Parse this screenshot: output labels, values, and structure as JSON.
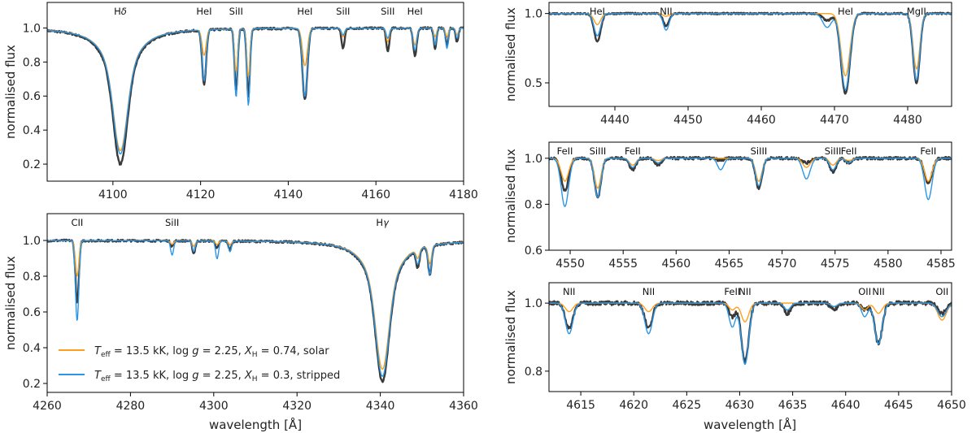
{
  "colors": {
    "observed": "#3a3a3a",
    "solar_model": "#ff9f1c",
    "stripped_model": "#2a96e8"
  },
  "legend": {
    "entries": [
      {
        "series": "solar",
        "label": "T_eff = 13.5 kK, log g = 2.25, X_H = 0.74, solar"
      },
      {
        "series": "stripped",
        "label": "T_eff = 13.5 kK, log g = 2.25, X_H = 0.3, stripped"
      }
    ]
  },
  "chart_data": [
    {
      "id": "panel-a",
      "type": "line",
      "xlabel": "",
      "ylabel": "normalised flux",
      "xlim": [
        4085,
        4180
      ],
      "ylim": [
        0.1,
        1.15
      ],
      "xticks": [
        4100,
        4120,
        4140,
        4160,
        4180
      ],
      "yticks": [
        0.2,
        0.4,
        0.6,
        0.8,
        1.0
      ],
      "lines": [
        {
          "label": "Hδ",
          "wl": 4101.7,
          "w": 2.6,
          "d": [
            0.72,
            0.8,
            0.74
          ],
          "broad": true
        },
        {
          "label": "HeI",
          "wl": 4120.8,
          "w": 0.45,
          "d": [
            0.15,
            0.32,
            0.3
          ]
        },
        {
          "label": "SiII",
          "wl": 4128.1,
          "w": 0.35,
          "d": [
            0.25,
            0.36,
            0.4
          ]
        },
        {
          "label": "",
          "wl": 4130.9,
          "w": 0.35,
          "d": [
            0.28,
            0.4,
            0.45
          ]
        },
        {
          "label": "HeI",
          "wl": 4143.8,
          "w": 0.55,
          "d": [
            0.22,
            0.42,
            0.4
          ]
        },
        {
          "label": "SiII",
          "wl": 4152.5,
          "w": 0.35,
          "d": [
            0.05,
            0.12,
            0.04
          ]
        },
        {
          "label": "SiII",
          "wl": 4162.7,
          "w": 0.35,
          "d": [
            0.08,
            0.14,
            0.06
          ]
        },
        {
          "label": "HeI",
          "wl": 4168.9,
          "w": 0.4,
          "d": [
            0.1,
            0.16,
            0.13
          ]
        },
        {
          "label": "",
          "wl": 4173.5,
          "w": 0.3,
          "d": [
            0.05,
            0.12,
            0.1
          ]
        },
        {
          "label": "",
          "wl": 4176.2,
          "w": 0.3,
          "d": [
            0.05,
            0.1,
            0.12
          ]
        },
        {
          "label": "",
          "wl": 4178.5,
          "w": 0.3,
          "d": [
            0.04,
            0.08,
            0.06
          ]
        }
      ]
    },
    {
      "id": "panel-b",
      "type": "line",
      "xlabel": "wavelength [Å]",
      "ylabel": "normalised flux",
      "xlim": [
        4260,
        4360
      ],
      "ylim": [
        0.15,
        1.15
      ],
      "xticks": [
        4260,
        4280,
        4300,
        4320,
        4340,
        4360
      ],
      "yticks": [
        0.2,
        0.4,
        0.6,
        0.8,
        1.0
      ],
      "lines": [
        {
          "label": "CII",
          "wl": 4267.2,
          "w": 0.4,
          "d": [
            0.2,
            0.35,
            0.45
          ]
        },
        {
          "label": "SiII",
          "wl": 4290.0,
          "w": 0.35,
          "d": [
            0.02,
            0.03,
            0.08
          ]
        },
        {
          "label": "",
          "wl": 4295.2,
          "w": 0.35,
          "d": [
            0.03,
            0.07,
            0.06
          ]
        },
        {
          "label": "",
          "wl": 4300.8,
          "w": 0.35,
          "d": [
            0.02,
            0.04,
            0.1
          ]
        },
        {
          "label": "",
          "wl": 4303.9,
          "w": 0.35,
          "d": [
            0.02,
            0.05,
            0.06
          ]
        },
        {
          "label": "Hγ",
          "wl": 4340.5,
          "w": 2.6,
          "d": [
            0.72,
            0.79,
            0.76
          ],
          "broad": true
        },
        {
          "label": "",
          "wl": 4349.0,
          "w": 0.4,
          "d": [
            0.05,
            0.1,
            0.08
          ]
        },
        {
          "label": "",
          "wl": 4351.9,
          "w": 0.4,
          "d": [
            0.1,
            0.16,
            0.16
          ]
        }
      ]
    },
    {
      "id": "panel-c",
      "type": "line",
      "xlabel": "",
      "ylabel": "normalised flux",
      "xlim": [
        4431,
        4486
      ],
      "ylim": [
        0.33,
        1.08
      ],
      "xticks": [
        4440,
        4450,
        4460,
        4470,
        4480
      ],
      "yticks": [
        0.5,
        1.0
      ],
      "lines": [
        {
          "label": "HeI",
          "wl": 4437.6,
          "w": 0.45,
          "d": [
            0.08,
            0.2,
            0.16
          ]
        },
        {
          "label": "NII",
          "wl": 4447.0,
          "w": 0.4,
          "d": [
            0.02,
            0.09,
            0.12
          ]
        },
        {
          "label": "",
          "wl": 4469.0,
          "w": 0.6,
          "d": [
            0.0,
            0.05,
            0.1
          ]
        },
        {
          "label": "HeI",
          "wl": 4471.5,
          "w": 0.6,
          "d": [
            0.45,
            0.58,
            0.55
          ]
        },
        {
          "label": "MgII",
          "wl": 4481.2,
          "w": 0.45,
          "d": [
            0.4,
            0.5,
            0.48
          ]
        }
      ]
    },
    {
      "id": "panel-d",
      "type": "line",
      "xlabel": "",
      "ylabel": "normalised flux",
      "xlim": [
        4548,
        4586
      ],
      "ylim": [
        0.6,
        1.07
      ],
      "xticks": [
        4550,
        4555,
        4560,
        4565,
        4570,
        4575,
        4580,
        4585
      ],
      "yticks": [
        0.6,
        0.8,
        1.0
      ],
      "lines": [
        {
          "label": "FeII",
          "wl": 4549.5,
          "w": 0.35,
          "d": [
            0.1,
            0.14,
            0.21
          ]
        },
        {
          "label": "SiIII",
          "wl": 4552.6,
          "w": 0.3,
          "d": [
            0.13,
            0.17,
            0.17
          ]
        },
        {
          "label": "FeII",
          "wl": 4555.9,
          "w": 0.3,
          "d": [
            0.03,
            0.05,
            0.04
          ]
        },
        {
          "label": "",
          "wl": 4558.3,
          "w": 0.3,
          "d": [
            0.01,
            0.03,
            0.02
          ]
        },
        {
          "label": "",
          "wl": 4564.2,
          "w": 0.3,
          "d": [
            0.0,
            0.01,
            0.05
          ]
        },
        {
          "label": "SiIII",
          "wl": 4567.8,
          "w": 0.3,
          "d": [
            0.1,
            0.13,
            0.12
          ]
        },
        {
          "label": "",
          "wl": 4572.3,
          "w": 0.35,
          "d": [
            0.04,
            0.02,
            0.09
          ]
        },
        {
          "label": "SiIII",
          "wl": 4574.8,
          "w": 0.3,
          "d": [
            0.03,
            0.06,
            0.05
          ]
        },
        {
          "label": "FeII",
          "wl": 4576.3,
          "w": 0.3,
          "d": [
            0.01,
            0.02,
            0.02
          ]
        },
        {
          "label": "FeII",
          "wl": 4583.8,
          "w": 0.35,
          "d": [
            0.1,
            0.11,
            0.18
          ]
        }
      ]
    },
    {
      "id": "panel-e",
      "type": "line",
      "xlabel": "wavelength [Å]",
      "ylabel": "normalised flux",
      "xlim": [
        4612,
        4650
      ],
      "ylim": [
        0.74,
        1.06
      ],
      "xticks": [
        4615,
        4620,
        4625,
        4630,
        4635,
        4640,
        4645,
        4650
      ],
      "yticks": [
        0.8,
        1.0
      ],
      "lines": [
        {
          "label": "NII",
          "wl": 4613.9,
          "w": 0.35,
          "d": [
            0.025,
            0.075,
            0.09
          ]
        },
        {
          "label": "NII",
          "wl": 4621.4,
          "w": 0.35,
          "d": [
            0.025,
            0.075,
            0.09
          ]
        },
        {
          "label": "FeII",
          "wl": 4629.3,
          "w": 0.3,
          "d": [
            0.02,
            0.04,
            0.07
          ]
        },
        {
          "label": "NII",
          "wl": 4630.5,
          "w": 0.35,
          "d": [
            0.055,
            0.17,
            0.18
          ]
        },
        {
          "label": "",
          "wl": 4634.5,
          "w": 0.3,
          "d": [
            0.0,
            0.03,
            0.02
          ]
        },
        {
          "label": "",
          "wl": 4638.9,
          "w": 0.3,
          "d": [
            0.01,
            0.02,
            0.01
          ]
        },
        {
          "label": "OII",
          "wl": 4641.8,
          "w": 0.3,
          "d": [
            0.02,
            0.02,
            0.04
          ]
        },
        {
          "label": "NII",
          "wl": 4643.1,
          "w": 0.35,
          "d": [
            0.03,
            0.12,
            0.12
          ]
        },
        {
          "label": "OII",
          "wl": 4649.1,
          "w": 0.4,
          "d": [
            0.05,
            0.03,
            0.04
          ]
        }
      ]
    }
  ]
}
